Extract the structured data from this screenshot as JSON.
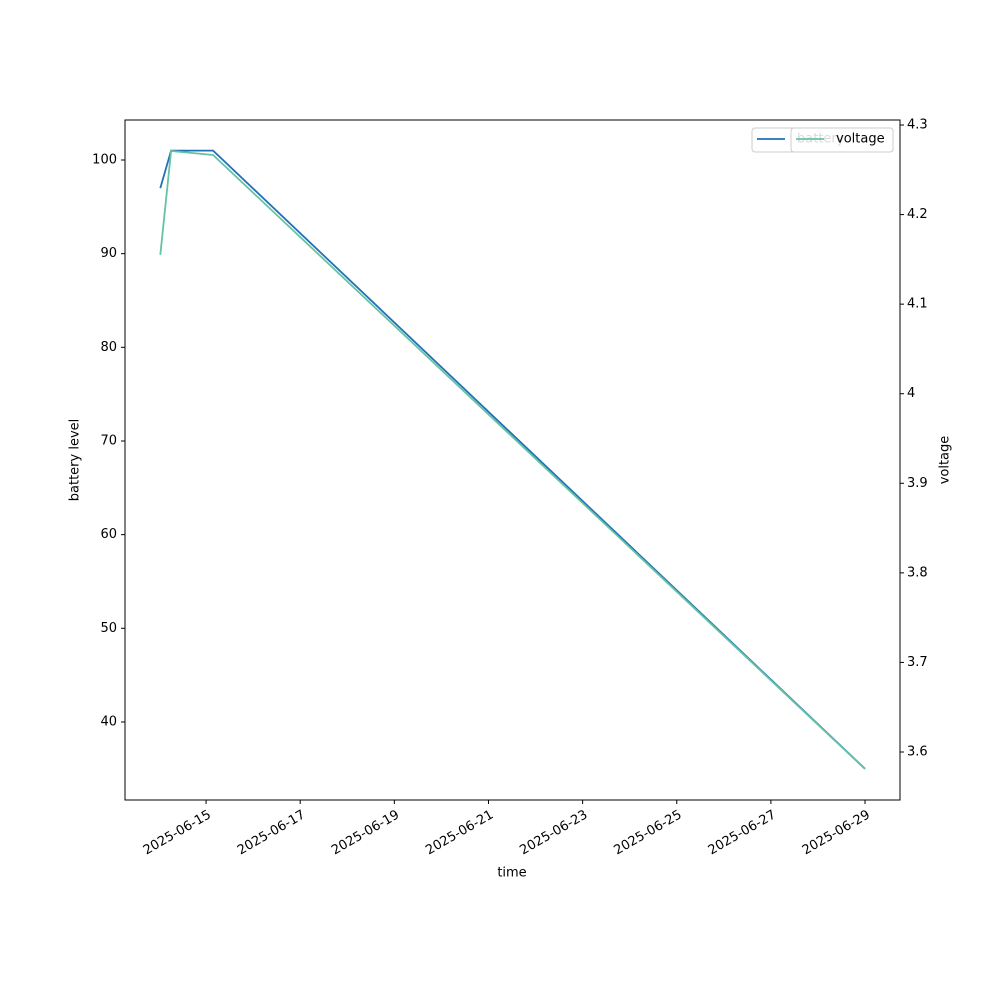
{
  "chart_data": {
    "type": "line",
    "x": [
      "2025-06-14T00:40",
      "2025-06-14T06:10",
      "2025-06-15T03:35",
      "2025-06-29T00:00"
    ],
    "xlim": [
      "2025-06-13T06:40",
      "2025-06-29T17:50"
    ],
    "xticks": [
      "2025-06-15",
      "2025-06-17",
      "2025-06-19",
      "2025-06-21",
      "2025-06-23",
      "2025-06-25",
      "2025-06-27",
      "2025-06-29"
    ],
    "xlabel": "time",
    "ylabel": "battery level",
    "y2label": "voltage",
    "ylim": [
      31.67,
      104.27
    ],
    "yticks": [
      40,
      50,
      60,
      70,
      80,
      90,
      100
    ],
    "y2lim": [
      3.5464,
      4.3056
    ],
    "y2ticks": [
      3.6,
      3.7,
      3.8,
      3.9,
      4.0,
      4.1,
      4.2,
      4.3
    ],
    "series": [
      {
        "name": "battery",
        "color": "#2171b5",
        "values": [
          97,
          101,
          101,
          35
        ]
      },
      {
        "name": "voltage",
        "color": "#66c2a5",
        "axis": "y2",
        "values": [
          4.155,
          4.271,
          4.2665,
          3.581
        ]
      }
    ],
    "legend": "upper right"
  }
}
